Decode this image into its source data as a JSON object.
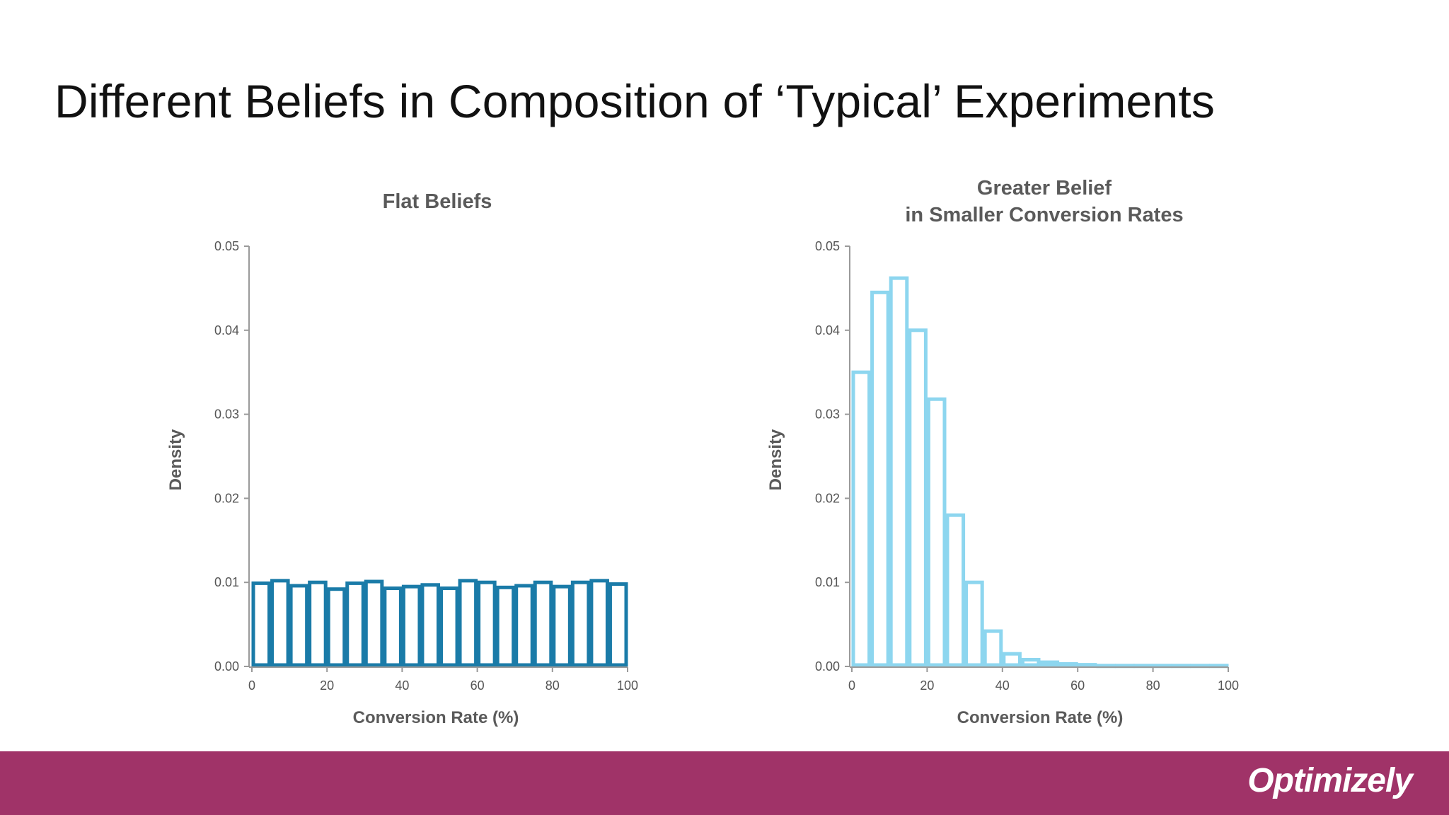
{
  "slide": {
    "title": "Different Beliefs in Composition of ‘Typical’ Experiments",
    "logo_text": "Optimizely"
  },
  "colors": {
    "flat": "#1a7ba8",
    "greater": "#8dd6ef",
    "axis": "#9a9a9a",
    "footer": "#a03368"
  },
  "chart_data": [
    {
      "type": "bar",
      "title": [
        "Flat Beliefs"
      ],
      "xlabel": "Conversion Rate (%)",
      "ylabel": "Density",
      "xlim": [
        0,
        100
      ],
      "ylim": [
        0,
        0.05
      ],
      "bin_width": 5,
      "x_ticks": [
        "0",
        "20",
        "40",
        "60",
        "80",
        "100"
      ],
      "y_ticks": [
        "0.00",
        "0.01",
        "0.02",
        "0.03",
        "0.04",
        "0.05"
      ],
      "values": [
        0.0099,
        0.0102,
        0.0096,
        0.01,
        0.0092,
        0.0099,
        0.0101,
        0.0093,
        0.0095,
        0.0097,
        0.0093,
        0.0102,
        0.01,
        0.0094,
        0.0096,
        0.01,
        0.0095,
        0.01,
        0.0102,
        0.0098
      ],
      "color_key": "flat"
    },
    {
      "type": "bar",
      "title": [
        "Greater Belief",
        "in Smaller Conversion Rates"
      ],
      "xlabel": "Conversion Rate (%)",
      "ylabel": "Density",
      "xlim": [
        0,
        100
      ],
      "ylim": [
        0,
        0.05
      ],
      "bin_width": 5,
      "x_ticks": [
        "0",
        "20",
        "40",
        "60",
        "80",
        "100"
      ],
      "y_ticks": [
        "0.00",
        "0.01",
        "0.02",
        "0.03",
        "0.04",
        "0.05"
      ],
      "values": [
        0.035,
        0.0445,
        0.0462,
        0.04,
        0.0318,
        0.018,
        0.01,
        0.0042,
        0.0015,
        0.0008,
        0.0005,
        0.0003,
        0.0002,
        0.0001,
        0.0001,
        0.0001,
        0.0001,
        0.0001,
        0.0001,
        0.0001
      ],
      "color_key": "greater"
    }
  ]
}
